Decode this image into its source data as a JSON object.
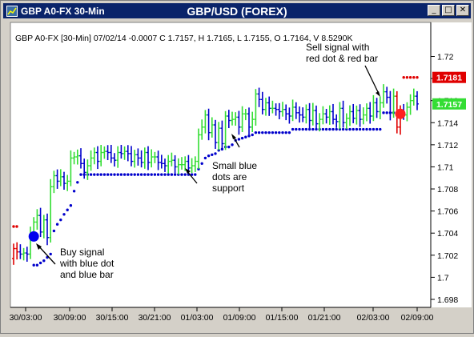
{
  "window": {
    "title_left": "GBP A0-FX 30-Min",
    "title_center": "GBP/USD (FOREX)",
    "buttons": {
      "minimize": "_",
      "maximize": "□",
      "close": "✕"
    }
  },
  "chart_data": {
    "type": "ohlc",
    "info_line": "GBP A0-FX [30-Min] 07/02/14  -0.0007 C 1.7157, H 1.7165, L 1.7155, O 1.7164, V 8.5290K",
    "ylim": [
      1.698,
      1.7225
    ],
    "y_ticks": [
      "1.72",
      "1.718",
      "1.716",
      "1.714",
      "1.712",
      "1.71",
      "1.708",
      "1.706",
      "1.704",
      "1.702",
      "1.7",
      "1.698"
    ],
    "x_ticks": [
      "30/03:00",
      "30/09:00",
      "30/15:00",
      "30/21:00",
      "01/03:00",
      "01/09:00",
      "01/15:00",
      "01/21:00",
      "02/03:00",
      "02/09:00"
    ],
    "price_labels": [
      {
        "text": "1.7181",
        "value": 1.7181,
        "color": "#e00000"
      },
      {
        "text": "1.7157",
        "value": 1.7157,
        "color": "#33dd33"
      }
    ],
    "colors": {
      "up": "#33dd33",
      "down": "#0000cc",
      "sell": "#e00000",
      "support": "#0000cc",
      "background": "#ffffff"
    },
    "annotations": [
      {
        "lines": [
          "Buy signal",
          "with blue dot",
          "and blue bar"
        ]
      },
      {
        "lines": [
          "Small blue",
          "dots are",
          "support"
        ]
      },
      {
        "lines": [
          "Sell signal with",
          "red dot & red bar"
        ]
      }
    ],
    "signals": [
      {
        "type": "buy",
        "x_index": 6,
        "value": 1.7037,
        "color": "#0000ee"
      },
      {
        "type": "sell",
        "x_index": 115,
        "value": 1.7148,
        "color": "#ff2020"
      }
    ],
    "bars_open": [
      1.7017,
      1.7026,
      1.7023,
      1.7021,
      1.7022,
      1.7021,
      1.7039,
      1.705,
      1.7056,
      1.7041,
      1.7052,
      1.7036,
      1.7082,
      1.7092,
      1.7087,
      1.7091,
      1.7085,
      1.7087,
      1.7108,
      1.7109,
      1.711,
      1.7103,
      1.7095,
      1.7101,
      1.7108,
      1.7113,
      1.7105,
      1.7113,
      1.7114,
      1.7113,
      1.7108,
      1.7106,
      1.7113,
      1.7112,
      1.7114,
      1.7112,
      1.7105,
      1.7111,
      1.7108,
      1.7104,
      1.7113,
      1.7104,
      1.7109,
      1.7109,
      1.7104,
      1.7103,
      1.7101,
      1.7105,
      1.7106,
      1.71,
      1.7102,
      1.7102,
      1.7105,
      1.7099,
      1.7101,
      1.7105,
      1.7129,
      1.7136,
      1.7147,
      1.7131,
      1.7138,
      1.7122,
      1.7135,
      1.7121,
      1.7146,
      1.7142,
      1.7143,
      1.7145,
      1.7136,
      1.7148,
      1.7148,
      1.7136,
      1.7143,
      1.7166,
      1.7161,
      1.7152,
      1.7158,
      1.7153,
      1.7153,
      1.7152,
      1.715,
      1.7152,
      1.7148,
      1.7146,
      1.7154,
      1.7149,
      1.7147,
      1.7145,
      1.7152,
      1.7142,
      1.7151,
      1.7139,
      1.7143,
      1.7148,
      1.7145,
      1.715,
      1.7143,
      1.7141,
      1.7153,
      1.714,
      1.7144,
      1.715,
      1.7144,
      1.7151,
      1.7143,
      1.7147,
      1.7153,
      1.7146,
      1.7158,
      1.715,
      1.7158,
      1.7168,
      1.7163,
      1.7149,
      1.7164,
      1.7136,
      1.715,
      1.7147,
      1.7154,
      1.716,
      1.7164
    ],
    "bars_close": [
      1.7026,
      1.7023,
      1.7021,
      1.7022,
      1.7021,
      1.7039,
      1.705,
      1.7056,
      1.7041,
      1.7052,
      1.7036,
      1.7082,
      1.7092,
      1.7087,
      1.7091,
      1.7085,
      1.7087,
      1.7108,
      1.7109,
      1.711,
      1.7103,
      1.7095,
      1.7101,
      1.7108,
      1.7113,
      1.7105,
      1.7113,
      1.7114,
      1.7113,
      1.7108,
      1.7106,
      1.7113,
      1.7112,
      1.7114,
      1.7112,
      1.7105,
      1.7111,
      1.7108,
      1.7104,
      1.7113,
      1.7104,
      1.7109,
      1.7109,
      1.7104,
      1.7103,
      1.7101,
      1.7105,
      1.7106,
      1.71,
      1.7102,
      1.7102,
      1.7105,
      1.7099,
      1.7101,
      1.7105,
      1.7129,
      1.7136,
      1.7147,
      1.7131,
      1.7138,
      1.7122,
      1.7135,
      1.7121,
      1.7146,
      1.7142,
      1.7143,
      1.7145,
      1.7136,
      1.7148,
      1.7148,
      1.7136,
      1.7143,
      1.7166,
      1.7161,
      1.7152,
      1.7158,
      1.7153,
      1.7153,
      1.7152,
      1.715,
      1.7152,
      1.7148,
      1.7146,
      1.7154,
      1.7149,
      1.7147,
      1.7145,
      1.7152,
      1.7142,
      1.7151,
      1.7139,
      1.7143,
      1.7148,
      1.7145,
      1.715,
      1.7143,
      1.7141,
      1.7153,
      1.714,
      1.7144,
      1.715,
      1.7144,
      1.7151,
      1.7143,
      1.7147,
      1.7153,
      1.7146,
      1.7158,
      1.715,
      1.7158,
      1.7168,
      1.7163,
      1.7149,
      1.7164,
      1.7136,
      1.715,
      1.7147,
      1.7154,
      1.716,
      1.7164,
      1.7157
    ],
    "support_dots": [
      null,
      null,
      null,
      null,
      null,
      null,
      1.7011,
      1.7011,
      1.7013,
      1.7015,
      1.7018,
      1.7021,
      1.7042,
      1.7048,
      1.7052,
      1.7057,
      1.7061,
      1.7065,
      1.7078,
      1.7086,
      1.7093,
      1.7093,
      1.7093,
      1.7093,
      1.7093,
      1.7093,
      1.7093,
      1.7093,
      1.7093,
      1.7093,
      1.7093,
      1.7093,
      1.7093,
      1.7093,
      1.7093,
      1.7093,
      1.7093,
      1.7093,
      1.7093,
      1.7093,
      1.7093,
      1.7093,
      1.7093,
      1.7093,
      1.7093,
      1.7093,
      1.7093,
      1.7093,
      1.7093,
      1.7093,
      1.7093,
      1.7093,
      1.7093,
      1.7093,
      1.7093,
      1.7098,
      1.7103,
      1.7108,
      1.711,
      1.7111,
      1.7112,
      1.7115,
      1.7116,
      1.7118,
      1.7118,
      1.712,
      1.7124,
      1.7125,
      1.7126,
      1.7127,
      1.7128,
      1.7129,
      1.7131,
      1.7131,
      1.7131,
      1.7131,
      1.7131,
      1.7131,
      1.7131,
      1.7131,
      1.7131,
      1.7131,
      1.7131,
      1.7134,
      1.7134,
      1.7134,
      1.7134,
      1.7134,
      1.7134,
      1.7134,
      1.7134,
      1.7134,
      1.7134,
      1.7134,
      1.7134,
      1.7134,
      1.7134,
      1.7134,
      1.7134,
      1.7134,
      1.7134,
      1.7134,
      1.7134,
      1.7134,
      1.7134,
      1.7134,
      1.7134,
      1.7134,
      1.7134,
      1.7134,
      1.7149,
      1.7149,
      1.7149,
      1.7149,
      1.7149,
      1.7149,
      1.7149,
      null,
      null,
      null,
      null
    ],
    "resistance_dots": [
      null,
      null,
      null,
      null,
      null,
      null,
      null,
      null,
      null,
      null,
      null,
      null,
      null,
      null,
      null,
      null,
      null,
      null,
      null,
      null,
      null,
      null,
      null,
      null,
      null,
      null,
      null,
      null,
      null,
      null,
      null,
      null,
      null,
      null,
      null,
      null,
      null,
      null,
      null,
      null,
      null,
      null,
      null,
      null,
      null,
      null,
      null,
      null,
      null,
      null,
      null,
      null,
      null,
      null,
      null,
      null,
      null,
      null,
      null,
      null,
      null,
      null,
      null,
      null,
      null,
      null,
      null,
      null,
      null,
      null,
      null,
      null,
      null,
      null,
      null,
      null,
      null,
      null,
      null,
      null,
      null,
      null,
      null,
      null,
      null,
      null,
      null,
      null,
      null,
      null,
      null,
      null,
      null,
      null,
      null,
      null,
      null,
      null,
      null,
      null,
      null,
      null,
      null,
      null,
      null,
      null,
      null,
      null,
      null,
      null,
      null,
      null,
      null,
      null,
      null,
      null,
      1.7181,
      1.7181,
      1.7181,
      1.7181,
      1.7181
    ]
  }
}
